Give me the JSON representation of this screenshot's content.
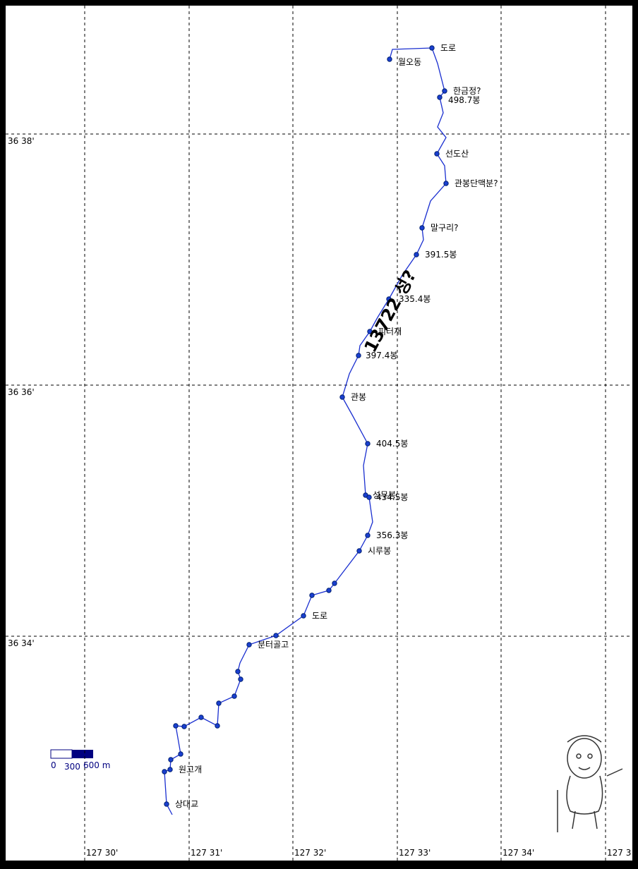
{
  "grid": {
    "longitude_labels": [
      "127 30'",
      "127 31'",
      "127 32'",
      "127 33'",
      "127 34'",
      "127 3"
    ],
    "latitude_labels": [
      "36 38'",
      "36 36'",
      "36 34'"
    ]
  },
  "waypoints": [
    "월오동",
    "도로",
    "한금정?",
    "498.7봉",
    "선도산",
    "관봉단맥분?",
    "말구리?",
    "391.5봉",
    "335.4봉",
    "피터재",
    "397.4봉",
    "관봉",
    "404.5봉",
    "성무봉",
    "434.5봉",
    "356.3봉",
    "시루봉",
    "도로",
    "분터골고",
    "원고개",
    "상대교"
  ],
  "annotation": "13722 성?",
  "scale": {
    "labels": [
      "0",
      "300",
      "600 m"
    ]
  }
}
